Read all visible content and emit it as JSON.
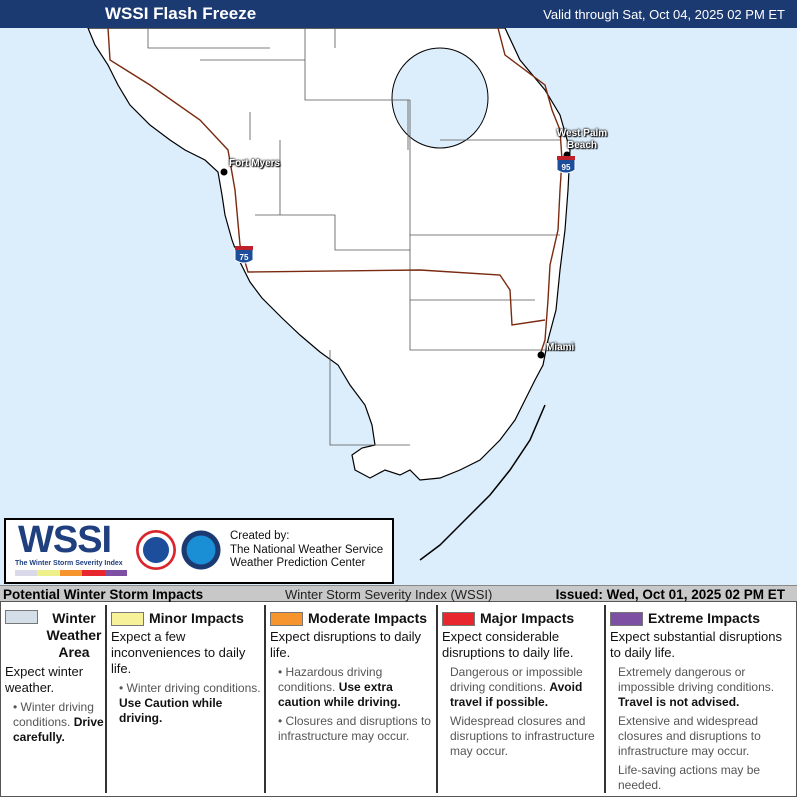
{
  "header": {
    "title": "WSSI Flash Freeze",
    "valid": "Valid through Sat, Oct 04, 2025 02 PM ET"
  },
  "map": {
    "cities": [
      "Fort Myers",
      "West Palm Beach",
      "Miami"
    ],
    "interstates": [
      "75",
      "95"
    ],
    "land_color": "#ffffff",
    "water_color": "#dcedfb"
  },
  "logo": {
    "wordmark": "WSSI",
    "subtitle": "The Winter Storm Severity Index",
    "created": [
      "Created by:",
      "The National Weather Service",
      "Weather Prediction Center"
    ]
  },
  "bar": {
    "title": "Potential Winter Storm Impacts",
    "name": "Winter Storm Severity Index (WSSI)",
    "issued": "Issued: Wed, Oct 01, 2025 02 PM ET"
  },
  "legend": [
    {
      "level": "Winter Weather Area",
      "color": "#d3dee8",
      "expect": "Expect winter weather.",
      "items": [
        {
          "text": "Winter driving conditions. ",
          "bold": "Drive carefully."
        }
      ]
    },
    {
      "level": "Minor Impacts",
      "color": "#f7f29a",
      "expect": "Expect a few inconveniences to daily life.",
      "items": [
        {
          "text": "Winter driving conditions. ",
          "bold": "Use Caution while driving."
        }
      ]
    },
    {
      "level": "Moderate Impacts",
      "color": "#f6952e",
      "expect": "Expect disruptions to daily life.",
      "items": [
        {
          "text": "Hazardous driving conditions. ",
          "bold": "Use extra caution while driving."
        },
        {
          "text": "Closures and disruptions to infrastructure may occur.",
          "bold": ""
        }
      ]
    },
    {
      "level": "Major Impacts",
      "color": "#e8262d",
      "expect": "Expect considerable disruptions to daily life.",
      "items": [
        {
          "text": "Dangerous or impossible driving conditions. ",
          "bold": "Avoid travel if possible."
        },
        {
          "text": "Widespread closures and disruptions to infrastructure may occur.",
          "bold": ""
        }
      ]
    },
    {
      "level": "Extreme Impacts",
      "color": "#7e50a4",
      "expect": "Expect substantial disruptions to daily life.",
      "items": [
        {
          "text": "Extremely dangerous or impossible driving conditions. ",
          "bold": "Travel is not advised."
        },
        {
          "text": "Extensive and widespread closures and disruptions to infrastructure may occur.",
          "bold": ""
        },
        {
          "text": "Life-saving actions may be needed.",
          "bold": ""
        }
      ]
    }
  ]
}
